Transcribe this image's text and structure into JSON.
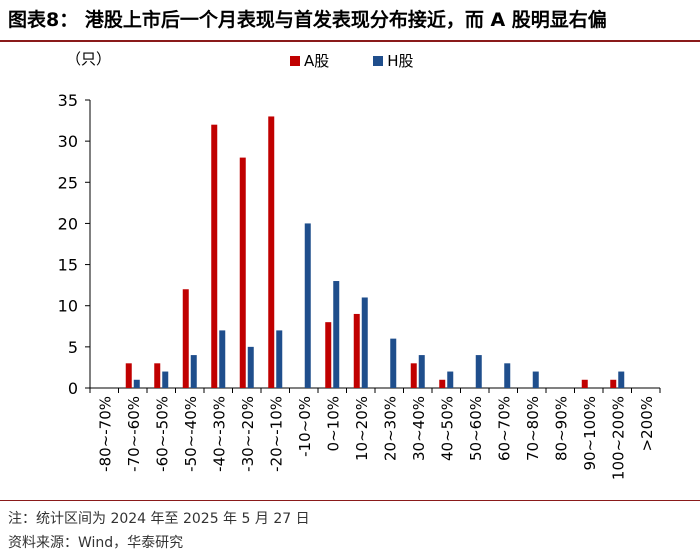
{
  "title": "图表8：  港股上市后一个月表现与首发表现分布接近，而 A 股明显右偏",
  "unit_label": "（只）",
  "note": "注：统计区间为 2024 年至 2025 年 5 月 27 日",
  "source": "资料来源：Wind，华泰研究",
  "colors": {
    "a_share": "#c00000",
    "h_share": "#1f4e8c",
    "title_rule": "#8a1a1a"
  },
  "chart_data": {
    "type": "bar",
    "categories": [
      "-80~-70%",
      "-70~-60%",
      "-60~-50%",
      "-50~-40%",
      "-40~-30%",
      "-30~-20%",
      "-20~-10%",
      "-10~0%",
      "0~10%",
      "10~20%",
      "20~30%",
      "30~40%",
      "40~50%",
      "50~60%",
      "60~70%",
      "70~80%",
      "80~90%",
      "90~100%",
      "100~200%",
      ">200%"
    ],
    "series": [
      {
        "name": "A股",
        "values": [
          0,
          3,
          3,
          12,
          32,
          28,
          33,
          0,
          8,
          9,
          0,
          3,
          1,
          0,
          0,
          0,
          0,
          1,
          1,
          0
        ]
      },
      {
        "name": "H股",
        "values": [
          0,
          1,
          2,
          4,
          7,
          5,
          7,
          20,
          13,
          11,
          6,
          4,
          2,
          4,
          3,
          2,
          0,
          0,
          2,
          0
        ]
      }
    ],
    "yticks": [
      "0",
      "5",
      "10",
      "15",
      "20",
      "25",
      "30",
      "35"
    ],
    "ylim": [
      0,
      35
    ],
    "legend_position": "top"
  }
}
